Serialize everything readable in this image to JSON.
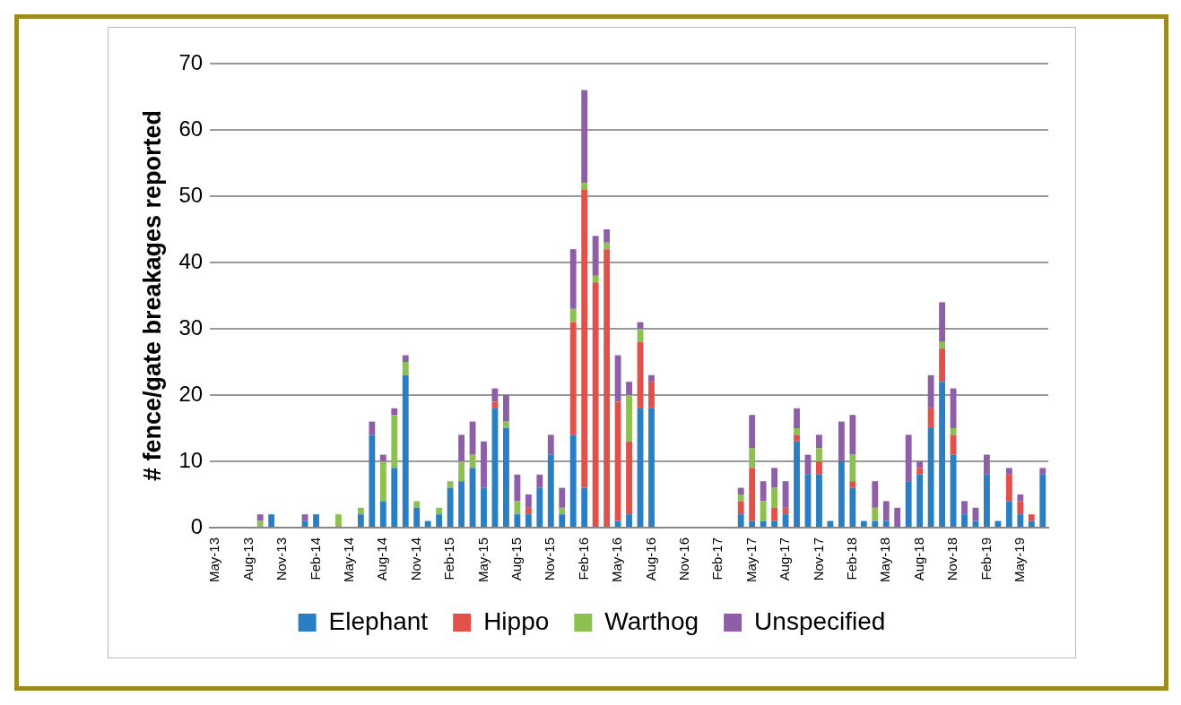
{
  "chart_data": {
    "type": "bar",
    "stacked": true,
    "ylabel": "# fence/gate breakages reported",
    "categories": [
      "May-13",
      null,
      null,
      "Aug-13",
      null,
      null,
      "Nov-13",
      null,
      null,
      "Feb-14",
      null,
      null,
      "May-14",
      null,
      null,
      "Aug-14",
      null,
      null,
      "Nov-14",
      null,
      null,
      "Feb-15",
      null,
      null,
      "May-15",
      null,
      null,
      "Aug-15",
      null,
      null,
      "Nov-15",
      null,
      null,
      "Feb-16",
      null,
      null,
      "May-16",
      null,
      null,
      "Aug-16",
      null,
      null,
      "Nov-16",
      null,
      null,
      "Feb-17",
      null,
      null,
      "May-17",
      null,
      null,
      "Aug-17",
      null,
      null,
      "Nov-17",
      null,
      null,
      "Feb-18",
      null,
      null,
      "May-18",
      null,
      null,
      "Aug-18",
      null,
      null,
      "Nov-18",
      null,
      null,
      "Feb-19",
      null,
      null,
      "May-19",
      null,
      null
    ],
    "series": [
      {
        "name": "Elephant",
        "color": "#2a7fc4",
        "values": [
          0,
          0,
          0,
          0,
          0,
          2,
          0,
          0,
          1,
          2,
          0,
          0,
          0,
          2,
          14,
          4,
          9,
          23,
          3,
          1,
          2,
          6,
          7,
          9,
          6,
          18,
          15,
          2,
          2,
          6,
          11,
          2,
          14,
          6,
          0,
          0,
          1,
          2,
          18,
          18,
          0,
          0,
          0,
          0,
          0,
          0,
          0,
          2,
          1,
          1,
          1,
          2,
          13,
          8,
          8,
          1,
          10,
          6,
          1,
          1,
          1,
          0,
          7,
          8,
          15,
          22,
          11,
          2,
          1,
          8,
          1,
          4,
          2,
          1,
          8
        ]
      },
      {
        "name": "Hippo",
        "color": "#e2504a",
        "values": [
          0,
          0,
          0,
          0,
          0,
          0,
          0,
          0,
          0,
          0,
          0,
          0,
          0,
          0,
          0,
          0,
          0,
          0,
          0,
          0,
          0,
          0,
          0,
          0,
          0,
          1,
          0,
          0,
          1,
          0,
          0,
          0,
          17,
          45,
          37,
          42,
          18,
          11,
          10,
          4,
          0,
          0,
          0,
          0,
          0,
          0,
          0,
          2,
          8,
          0,
          2,
          1,
          1,
          0,
          2,
          0,
          0,
          1,
          0,
          0,
          0,
          0,
          0,
          1,
          3,
          5,
          3,
          0,
          0,
          0,
          0,
          4,
          2,
          1,
          0
        ]
      },
      {
        "name": "Warthog",
        "color": "#8cc152",
        "values": [
          0,
          0,
          0,
          0,
          1,
          0,
          0,
          0,
          0,
          0,
          0,
          2,
          0,
          1,
          0,
          6,
          8,
          2,
          1,
          0,
          1,
          1,
          3,
          2,
          0,
          0,
          1,
          2,
          0,
          0,
          0,
          1,
          2,
          1,
          1,
          1,
          0,
          7,
          2,
          0,
          0,
          0,
          0,
          0,
          0,
          0,
          0,
          1,
          3,
          3,
          3,
          0,
          1,
          0,
          2,
          0,
          0,
          4,
          0,
          2,
          0,
          0,
          0,
          0,
          0,
          1,
          1,
          0,
          0,
          0,
          0,
          0,
          0,
          0,
          0
        ]
      },
      {
        "name": "Unspecified",
        "color": "#8e5fa8",
        "values": [
          0,
          0,
          0,
          0,
          1,
          0,
          0,
          0,
          1,
          0,
          0,
          0,
          0,
          0,
          2,
          1,
          1,
          1,
          0,
          0,
          0,
          0,
          4,
          5,
          7,
          2,
          4,
          4,
          2,
          2,
          3,
          3,
          9,
          14,
          6,
          2,
          7,
          2,
          1,
          1,
          0,
          0,
          0,
          0,
          0,
          0,
          0,
          1,
          5,
          3,
          3,
          4,
          3,
          3,
          2,
          0,
          6,
          6,
          0,
          4,
          3,
          3,
          7,
          1,
          5,
          6,
          6,
          2,
          2,
          3,
          0,
          1,
          1,
          0,
          1
        ]
      }
    ],
    "ylim": [
      0,
      70
    ],
    "yticks": [
      0,
      10,
      20,
      30,
      40,
      50,
      60,
      70
    ],
    "grid": "y",
    "legend": "bottom"
  }
}
